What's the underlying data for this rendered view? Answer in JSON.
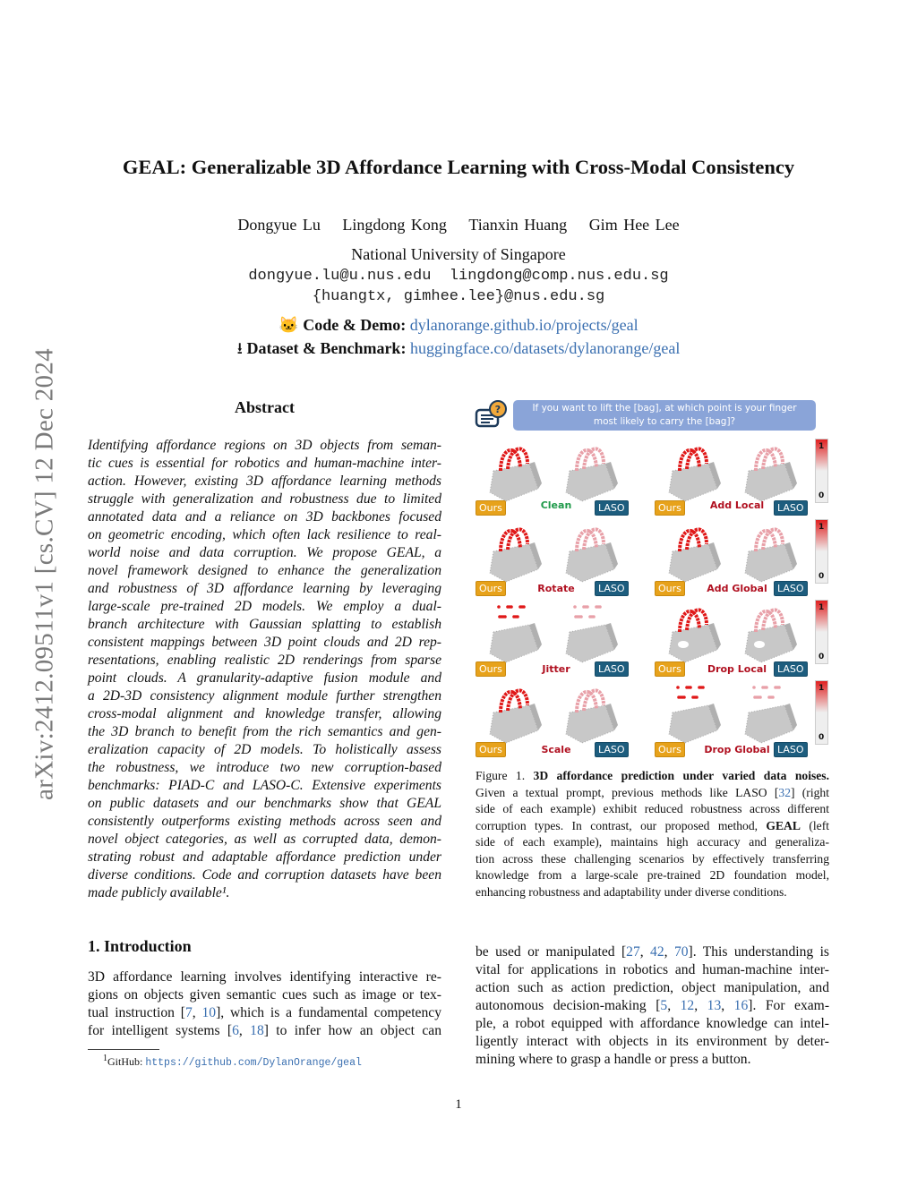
{
  "sidebar_id": "arXiv:2412.09511v1  [cs.CV]  12 Dec 2024",
  "title": "GEAL: Generalizable 3D Affordance Learning with Cross-Modal Consistency",
  "authors": [
    "Dongyue Lu",
    "Lingdong Kong",
    "Tianxin Huang",
    "Gim Hee Lee"
  ],
  "affiliation": "National University of Singapore",
  "emails": [
    "dongyue.lu@u.nus.edu  lingdong@comp.nus.edu.sg",
    "{huangtx, gimhee.lee}@nus.edu.sg"
  ],
  "code_label": "Code & Demo:",
  "code_link": "dylanorange.github.io/projects/geal",
  "dataset_label": "Dataset & Benchmark:",
  "dataset_link": "huggingface.co/datasets/dylanorange/geal",
  "abstract_heading": "Abstract",
  "abstract_lines": [
    "Identifying affordance regions on 3D objects from seman-",
    "tic cues is essential for robotics and human-machine inter-",
    "action. However, existing 3D affordance learning methods",
    "struggle with generalization and robustness due to limited",
    "annotated data and a reliance on 3D backbones focused",
    "on geometric encoding, which often lack resilience to real-",
    "world noise and data corruption. We propose GEAL, a",
    "novel framework designed to enhance the generalization",
    "and robustness of 3D affordance learning by leveraging",
    "large-scale pre-trained 2D models. We employ a dual-",
    "branch architecture with Gaussian splatting to establish",
    "consistent mappings between 3D point clouds and 2D rep-",
    "resentations, enabling realistic 2D renderings from sparse",
    "point clouds. A granularity-adaptive fusion module and",
    "a 2D-3D consistency alignment module further strengthen",
    "cross-modal alignment and knowledge transfer, allowing",
    "the 3D branch to benefit from the rich semantics and gen-",
    "eralization capacity of 2D models. To holistically assess",
    "the robustness, we introduce two new corruption-based",
    "benchmarks: PIAD-C and LASO-C. Extensive experiments",
    "on public datasets and our benchmarks show that GEAL",
    "consistently outperforms existing methods across seen and",
    "novel object categories, as well as corrupted data, demon-",
    "strating robust and adaptable affordance prediction under",
    "diverse conditions. Code and corruption datasets have been",
    "made publicly available¹."
  ],
  "figure": {
    "prompt_lines": [
      "If you want to lift the [bag], at which point is your finger",
      "most likely to carry the [bag]?"
    ],
    "ours_label": "Ours",
    "baseline_label": "LASO",
    "colorbar_max": "1",
    "colorbar_min": "0",
    "corruptions": [
      {
        "label": "Clean",
        "color": "#1f9a4a"
      },
      {
        "label": "Add Local",
        "color": "#b01020"
      },
      {
        "label": "Rotate",
        "color": "#b01020"
      },
      {
        "label": "Add Global",
        "color": "#b01020"
      },
      {
        "label": "Jitter",
        "color": "#b01020"
      },
      {
        "label": "Drop Local",
        "color": "#b01020"
      },
      {
        "label": "Scale",
        "color": "#b01020"
      },
      {
        "label": "Drop Global",
        "color": "#b01020"
      }
    ]
  },
  "caption_lines": [
    "Figure 1.  <b>3D affordance prediction under varied data noises.</b>",
    "Given a textual prompt, previous methods like LASO [<span class=lnk>32</span>] (right",
    "side of each example) exhibit reduced robustness across different",
    "corruption types.  In contrast, our proposed method, <b>GEAL</b> (left",
    "side of each example), maintains high accuracy and generaliza-",
    "tion across these challenging scenarios by effectively transferring",
    "knowledge from a large-scale pre-trained 2D foundation model,",
    "enhancing robustness and adaptability under diverse conditions."
  ],
  "intro_heading": "1. Introduction",
  "intro_left_lines": [
    "3D affordance learning involves identifying interactive re-",
    "gions on objects given semantic cues such as image or tex-",
    "tual instruction [<span class=lnk>7</span>, <span class=lnk>10</span>], which is a fundamental competency",
    "for intelligent systems [<span class=lnk>6</span>, <span class=lnk>18</span>] to infer how an object can"
  ],
  "intro_right_lines": [
    "be used or manipulated [<span class=lnk>27</span>, <span class=lnk>42</span>, <span class=lnk>70</span>]. This understanding is",
    "vital for applications in robotics and human-machine inter-",
    "action such as action prediction, object manipulation, and",
    "autonomous decision-making [<span class=lnk>5</span>, <span class=lnk>12</span>, <span class=lnk>13</span>, <span class=lnk>16</span>].  For exam-",
    "ple, a robot equipped with affordance knowledge can intel-",
    "ligently interact with objects in its environment by deter-",
    "mining where to grasp a handle or press a button."
  ],
  "footnote_label": "GitHub:",
  "footnote_link": "https://github.com/DylanOrange/geal",
  "footnote_mark": "1",
  "page_number": "1",
  "colors": {
    "link": "#3a6fb0",
    "prompt_bg": "#8aa4d8",
    "ours_badge": "#e7a21b",
    "laso_badge": "#1d5d7e",
    "affordance_high": "#e02020"
  }
}
